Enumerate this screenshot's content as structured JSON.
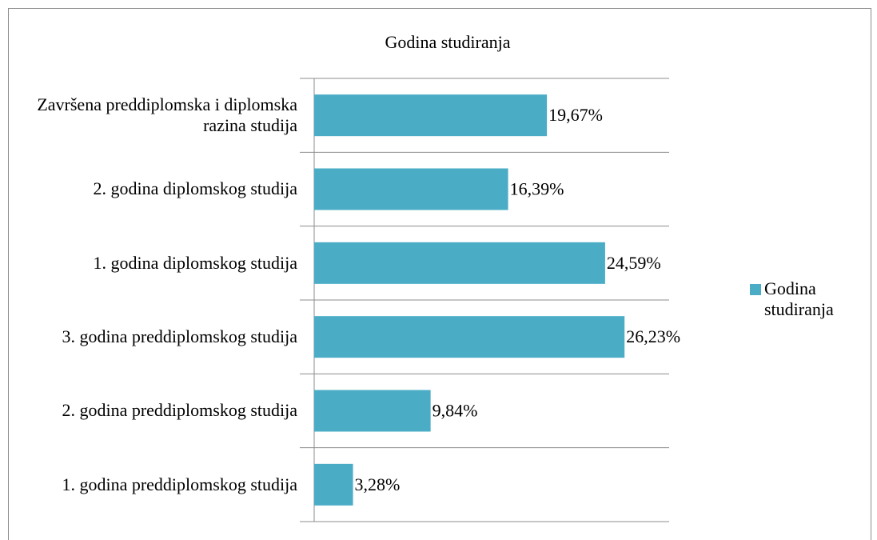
{
  "chart_data": {
    "type": "bar",
    "orientation": "horizontal",
    "title": "Godina studiranja",
    "categories": [
      "Završena preddiplomska i diplomska razina studija",
      "2. godina diplomskog studija",
      "1. godina diplomskog studija",
      "3. godina preddiplomskog studija",
      "2. godina preddiplomskog studija",
      "1. godina preddiplomskog studija"
    ],
    "series": [
      {
        "name": "Godina studiranja",
        "color": "#4bacc6",
        "values": [
          19.67,
          16.39,
          24.59,
          26.23,
          9.84,
          3.28
        ],
        "value_labels": [
          "19,67%",
          "16,39%",
          "24,59%",
          "26,23%",
          "9,84%",
          "3,28%"
        ]
      }
    ],
    "xlim": [
      0,
      30
    ],
    "legend": "right"
  }
}
